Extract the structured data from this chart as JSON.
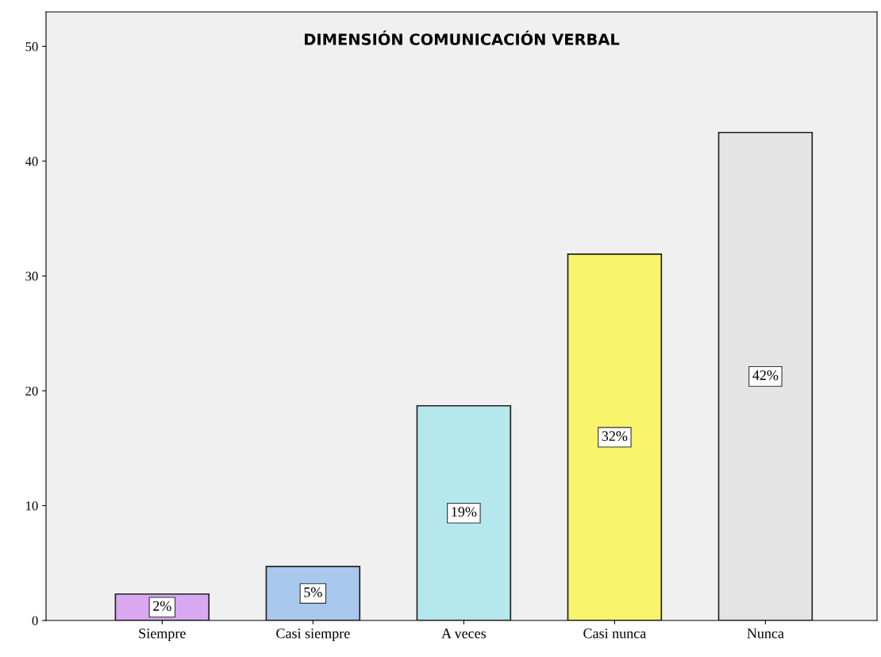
{
  "chart_data": {
    "type": "bar",
    "title": "DIMENSIÓN COMUNICACIÓN VERBAL",
    "categories": [
      "Siempre",
      "Casi siempre",
      "A veces",
      "Casi nunca",
      "Nunca"
    ],
    "values": [
      2.3,
      4.7,
      18.7,
      31.9,
      42.5
    ],
    "value_labels": [
      "2%",
      "5%",
      "19%",
      "32%",
      "42%"
    ],
    "colors": [
      "#d9a8f0",
      "#a9c8ee",
      "#b4e8ec",
      "#f8f46c",
      "#e4e4e4"
    ],
    "ylim": [
      0,
      53
    ],
    "yticks": [
      0,
      10,
      20,
      30,
      40,
      50
    ],
    "grid": false
  }
}
